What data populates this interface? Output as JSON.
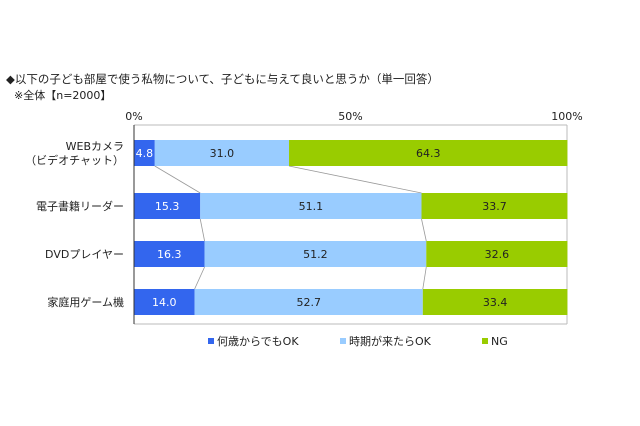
{
  "chart_data": {
    "type": "bar",
    "stacked": "percent",
    "orientation": "horizontal",
    "title": "◆以下の子ども部屋で使う私物について、子どもに与えて良いと思うか（単一回答）",
    "subtitle": "※全体【n=2000】",
    "categories": [
      [
        "WEBカメラ",
        "（ビデオチャット）"
      ],
      [
        "電子書籍リーダー"
      ],
      [
        "DVDプレイヤー"
      ],
      [
        "家庭用ゲーム機"
      ]
    ],
    "series": [
      {
        "name": "何歳からでもOK",
        "values": [
          4.8,
          15.3,
          16.3,
          14.0
        ],
        "color": "#3366ee"
      },
      {
        "name": "時期が来たらOK",
        "values": [
          31.0,
          51.1,
          51.2,
          52.7
        ],
        "color": "#99ccff"
      },
      {
        "name": "NG",
        "values": [
          64.3,
          33.7,
          32.6,
          33.4
        ],
        "color": "#99cc00"
      }
    ],
    "x_ticks": [
      "0%",
      "50%",
      "100%"
    ],
    "xlim": [
      0,
      100
    ],
    "legend_position": "bottom",
    "grid": false,
    "connector_lines": true
  }
}
